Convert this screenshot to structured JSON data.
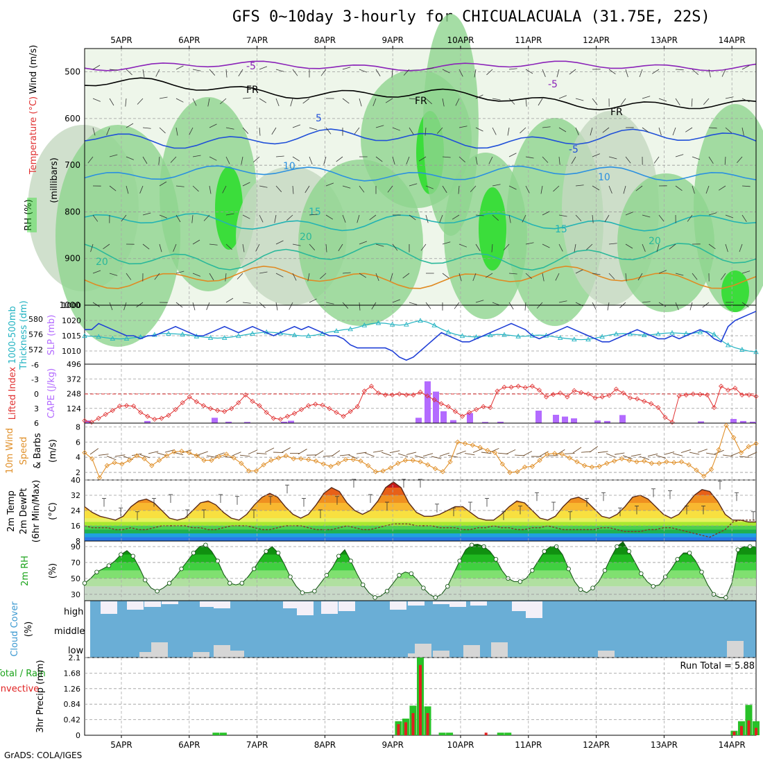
{
  "title": "GFS 0~10day 3-hourly for CHICUALACUALA (31.75E, 22S)",
  "footer": "GrADS: COLA/IGES",
  "run_total_label": "Run Total = 5.88",
  "date_labels": [
    "5APR",
    "6APR",
    "7APR",
    "8APR",
    "9APR",
    "10APR",
    "11APR",
    "12APR",
    "13APR",
    "14APR"
  ],
  "colors": {
    "slp": "#1f3fd6",
    "thickness": "#22b3c2",
    "lifted_index": "#e03030",
    "cape": "#b36bff",
    "wind_speed": "#e0902a",
    "rh_green": "#1fd11f",
    "cloud_blue": "#6aaed6",
    "rain_green": "#28c128",
    "convective_red": "#e02020"
  },
  "chart_data": [
    {
      "panel": "upper_air",
      "type": "heatmap",
      "ylabels": [
        "RH (%)",
        "Temperature (°C)",
        "Wind (m/s)",
        "(millibars)"
      ],
      "y_ticks": [
        500,
        600,
        700,
        800,
        900,
        1000
      ],
      "ylim": [
        1000,
        450
      ],
      "contour_labels": [
        "-5",
        "-5",
        "FR",
        "FR",
        "FR",
        "5",
        "-5",
        "10",
        "10",
        "15",
        "15",
        "20",
        "20",
        "20"
      ]
    },
    {
      "panel": "slp_thickness",
      "type": "line",
      "ylabels": [
        "1000-500mb",
        "Thickness (dm)",
        "SLP (mb)"
      ],
      "left_ticks": [
        "580",
        "576",
        "572"
      ],
      "right_ticks": [
        "1020",
        "1015",
        "1010"
      ],
      "series": [
        {
          "name": "SLP (mb)",
          "values": [
            1017,
            1017,
            1019,
            1018,
            1017,
            1016,
            1015,
            1015,
            1014,
            1015,
            1015,
            1016,
            1017,
            1018,
            1017,
            1016,
            1015,
            1015,
            1016,
            1017,
            1018,
            1017,
            1016,
            1017,
            1018,
            1017,
            1016,
            1015,
            1016,
            1017,
            1018,
            1017,
            1018,
            1017,
            1016,
            1015,
            1015,
            1014,
            1012,
            1011,
            1011,
            1011,
            1011,
            1011,
            1010,
            1008,
            1007,
            1008,
            1010,
            1012,
            1014,
            1016,
            1015,
            1014,
            1013,
            1013,
            1014,
            1015,
            1016,
            1017,
            1018,
            1019,
            1018,
            1017,
            1015,
            1014,
            1015,
            1016,
            1017,
            1018,
            1017,
            1016,
            1015,
            1014,
            1013,
            1013,
            1014,
            1015,
            1016,
            1017,
            1016,
            1015,
            1014,
            1014,
            1015,
            1014,
            1015,
            1016,
            1017,
            1016,
            1014,
            1013,
            1018,
            1020,
            1021,
            1022,
            1023
          ]
        },
        {
          "name": "1000-500mb Thickness (dm)",
          "values": [
            575.6,
            575.5,
            575.4,
            575.1,
            574.9,
            574.8,
            574.9,
            575.1,
            575.3,
            575.5,
            575.9,
            576.2,
            576.2,
            576.1,
            576.0,
            575.8,
            575.5,
            575.3,
            575.1,
            575.0,
            575.1,
            575.3,
            575.6,
            575.9,
            576.2,
            576.4,
            576.6,
            576.5,
            576.3,
            576.0,
            575.8,
            575.6,
            575.6,
            575.8,
            576.2,
            576.6,
            576.9,
            577.2,
            577.4,
            577.8,
            578.4,
            578.8,
            579.0,
            578.9,
            578.6,
            578.4,
            578.6,
            579.2,
            579.6,
            579.2,
            578.4,
            577.4,
            576.6,
            576.0,
            575.6,
            575.4,
            575.3,
            575.5,
            575.8,
            576.0,
            575.9,
            575.7,
            575.5,
            575.5,
            575.7,
            575.8,
            575.7,
            575.4,
            575.1,
            574.9,
            574.7,
            574.6,
            574.7,
            575.0,
            575.4,
            575.8,
            576.1,
            576.2,
            576.1,
            575.9,
            575.8,
            575.9,
            576.1,
            576.3,
            576.4,
            576.3,
            576.2,
            576.3,
            576.6,
            576.8,
            576.0,
            574.4,
            573.2,
            572.5,
            572.0,
            571.6,
            571.4
          ]
        }
      ]
    },
    {
      "panel": "lifted_index_cape",
      "type": "bar",
      "ylabels": [
        "Lifted Index",
        "CAPE (J/kg)"
      ],
      "left_ticks": [
        "-6",
        "-3",
        "0",
        "3",
        "6"
      ],
      "right_ticks": [
        "496",
        "372",
        "248",
        "124"
      ],
      "ylim_li": [
        6,
        -6
      ],
      "ylim_cape": [
        0,
        496
      ],
      "series": [
        {
          "name": "Lifted Index",
          "values": [
            5.5,
            5.8,
            5.0,
            4.2,
            3.4,
            2.5,
            2.4,
            2.5,
            3.8,
            4.6,
            5.2,
            5.0,
            4.4,
            3.2,
            1.8,
            0.6,
            1.6,
            2.4,
            3.0,
            3.4,
            3.6,
            3.0,
            1.8,
            0.2,
            1.5,
            2.4,
            3.8,
            5.0,
            5.2,
            4.6,
            4.0,
            3.2,
            2.4,
            2.1,
            2.3,
            3.0,
            3.8,
            4.6,
            3.6,
            2.6,
            -0.6,
            -1.6,
            -0.2,
            0.2,
            0.2,
            0.0,
            0.2,
            0.2,
            -0.4,
            0.4,
            1.2,
            2.0,
            2.6,
            3.6,
            4.6,
            3.8,
            3.2,
            2.6,
            2.8,
            -0.6,
            -1.4,
            -1.4,
            -1.6,
            -1.3,
            -1.6,
            -0.8,
            0.6,
            0.1,
            -0.2,
            0.6,
            -0.7,
            -0.3,
            0.0,
            0.8,
            0.6,
            0.3,
            -1.0,
            -0.2,
            0.8,
            1.0,
            1.5,
            2.0,
            2.8,
            4.8,
            5.8,
            0.4,
            0.2,
            0.0,
            0.1,
            0.2,
            2.8,
            -1.6,
            -0.8,
            -1.2,
            0.2,
            0.2,
            0.5
          ]
        },
        {
          "name": "CAPE (J/kg)",
          "values": [
            30,
            0,
            0,
            0,
            0,
            0,
            0,
            0,
            0,
            0,
            0,
            0,
            0,
            0,
            0,
            0,
            0,
            0,
            0,
            0,
            0,
            0,
            0,
            0,
            0,
            0,
            0,
            0,
            0,
            0,
            0,
            0,
            0,
            0,
            0,
            0,
            0,
            0,
            0,
            0,
            0,
            0,
            0,
            0,
            0,
            0,
            0,
            0,
            0,
            0,
            0,
            0,
            0,
            0,
            0,
            0,
            0,
            0,
            0,
            0,
            0,
            0,
            0,
            0,
            0,
            0,
            0,
            0,
            0,
            0,
            0,
            0,
            0,
            0,
            0,
            0,
            0,
            0,
            0,
            0,
            0,
            0,
            0,
            0,
            0,
            0,
            0,
            0,
            0,
            0,
            0,
            0,
            0,
            0,
            0,
            0,
            0
          ]
        }
      ]
    },
    {
      "panel": "wind10m",
      "type": "line",
      "ylabels": [
        "10m Wind",
        "Speed",
        "(m/s)",
        "& Barbs"
      ],
      "y_ticks": [
        2,
        4,
        6,
        8
      ],
      "ylim": [
        1,
        8.5
      ],
      "series": [
        {
          "name": "Speed",
          "values": [
            4.6,
            3.8,
            1.3,
            2.9,
            3.3,
            3.1,
            3.6,
            4.2,
            3.8,
            2.9,
            3.6,
            4.2,
            4.7,
            4.8,
            4.6,
            4.2,
            3.6,
            3.6,
            4.1,
            4.4,
            3.9,
            3.2,
            2.2,
            2.2,
            3.0,
            3.6,
            3.9,
            4.2,
            3.8,
            3.8,
            3.7,
            3.5,
            3.1,
            2.8,
            3.2,
            3.7,
            3.7,
            3.5,
            2.9,
            2.1,
            2.2,
            2.6,
            3.2,
            3.6,
            3.6,
            3.4,
            3.0,
            2.5,
            2.1,
            3.4,
            6.0,
            5.8,
            5.6,
            5.3,
            4.9,
            4.6,
            3.1,
            2.0,
            2.1,
            2.7,
            2.8,
            3.6,
            4.4,
            4.5,
            4.4,
            3.9,
            3.4,
            2.9,
            2.7,
            2.8,
            3.2,
            3.5,
            3.8,
            3.6,
            3.4,
            3.5,
            3.2,
            3.2,
            3.4,
            3.3,
            3.4,
            3.0,
            2.3,
            1.5,
            2.4,
            5.0,
            8.2,
            6.6,
            4.6,
            5.4,
            5.8
          ]
        }
      ]
    },
    {
      "panel": "temperature2m",
      "type": "area",
      "ylabels": [
        "2m Temp",
        "2m DewPt",
        "(6hr Min/Max)",
        "(°C)"
      ],
      "y_ticks": [
        8,
        16,
        24,
        32,
        40
      ],
      "ylim": [
        8,
        40
      ],
      "series": [
        {
          "name": "2m Temp",
          "values": [
            26,
            23,
            21,
            20,
            19,
            21,
            26,
            29,
            30,
            28,
            24,
            20,
            19,
            20,
            24,
            28,
            29,
            27,
            23,
            20,
            19,
            22,
            27,
            31,
            33,
            31,
            26,
            22,
            20,
            22,
            27,
            33,
            36,
            34,
            28,
            24,
            22,
            24,
            29,
            36,
            39,
            36,
            28,
            23,
            21,
            21,
            22,
            24,
            26,
            26,
            23,
            20,
            19,
            19,
            22,
            26,
            29,
            28,
            24,
            20,
            19,
            21,
            26,
            30,
            31,
            29,
            25,
            21,
            20,
            22,
            26,
            31,
            32,
            30,
            26,
            22,
            20,
            22,
            27,
            32,
            35,
            34,
            29,
            22,
            19,
            19,
            18,
            18
          ]
        },
        {
          "name": "2m DewPt",
          "values": [
            16,
            15,
            15,
            15,
            14,
            14,
            15,
            14,
            14,
            15,
            16,
            16,
            16,
            16,
            15,
            15,
            14,
            14,
            15,
            16,
            16,
            16,
            15,
            14,
            14,
            15,
            16,
            16,
            16,
            15,
            14,
            14,
            14,
            15,
            16,
            15,
            14,
            14,
            15,
            16,
            17,
            17,
            17,
            16,
            16,
            16,
            15,
            15,
            15,
            14,
            14,
            15,
            15,
            16,
            15,
            15,
            14,
            14,
            15,
            15,
            16,
            15,
            14,
            14,
            14,
            14,
            14,
            15,
            15,
            14,
            13,
            13,
            13,
            14,
            14,
            15,
            15,
            14,
            13,
            12,
            11,
            10,
            12,
            14,
            18,
            19,
            19,
            19
          ]
        }
      ]
    },
    {
      "panel": "rh2m",
      "type": "area",
      "ylabels": [
        "2m RH",
        "(%)"
      ],
      "y_ticks": [
        30,
        50,
        70,
        90
      ],
      "ylim": [
        22,
        97
      ],
      "series": [
        {
          "name": "2m RH",
          "values": [
            44,
            50,
            58,
            62,
            66,
            72,
            80,
            85,
            78,
            64,
            48,
            38,
            34,
            38,
            44,
            52,
            62,
            72,
            82,
            90,
            92,
            84,
            72,
            55,
            44,
            42,
            44,
            52,
            62,
            74,
            84,
            90,
            82,
            68,
            52,
            40,
            32,
            32,
            34,
            44,
            54,
            64,
            78,
            86,
            72,
            56,
            42,
            32,
            26,
            28,
            34,
            44,
            54,
            58,
            56,
            48,
            38,
            30,
            26,
            30,
            40,
            56,
            72,
            86,
            92,
            93,
            90,
            84,
            74,
            60,
            50,
            46,
            46,
            50,
            60,
            72,
            84,
            90,
            90,
            80,
            62,
            46,
            36,
            32,
            38,
            46,
            60,
            76,
            90,
            96,
            84,
            70,
            56,
            46,
            40,
            42,
            52,
            62,
            74,
            82,
            82,
            72,
            58,
            42,
            30,
            26,
            26,
            44,
            86,
            90,
            90,
            90
          ]
        }
      ]
    },
    {
      "panel": "cloud_cover",
      "type": "bar",
      "ylabels": [
        "Cloud Cover",
        "(%)"
      ],
      "row_labels": [
        "high",
        "middle",
        "low"
      ]
    },
    {
      "panel": "precip",
      "type": "bar",
      "ylabels": [
        "Total / Rain",
        "Convective",
        "3hr Precip (mm)"
      ],
      "y_ticks": [
        "0",
        "0.42",
        "0.84",
        "1.26",
        "1.68",
        "2.1"
      ],
      "ylim": [
        0,
        2.1
      ],
      "series": [
        {
          "name": "Total / Rain",
          "values": [
            0,
            0,
            0,
            0,
            0,
            0,
            0,
            0,
            0,
            0,
            0,
            0,
            0,
            0,
            0,
            0,
            0,
            0,
            0.07,
            0.07,
            0,
            0,
            0,
            0,
            0,
            0,
            0,
            0,
            0,
            0,
            0,
            0,
            0,
            0,
            0,
            0,
            0,
            0,
            0,
            0,
            0,
            0,
            0,
            0.38,
            0.45,
            0.8,
            2.1,
            0.78,
            0,
            0.07,
            0.07,
            0,
            0,
            0,
            0,
            0,
            0,
            0.07,
            0.07,
            0,
            0,
            0,
            0,
            0,
            0,
            0,
            0,
            0,
            0,
            0,
            0,
            0,
            0,
            0,
            0,
            0,
            0,
            0,
            0,
            0,
            0,
            0,
            0,
            0,
            0,
            0,
            0,
            0,
            0,
            0.12,
            0.38,
            0.82,
            0.38
          ]
        },
        {
          "name": "Convective",
          "values": [
            0,
            0,
            0,
            0,
            0,
            0,
            0,
            0,
            0,
            0,
            0,
            0,
            0,
            0,
            0,
            0,
            0,
            0,
            0,
            0,
            0,
            0,
            0,
            0,
            0,
            0,
            0,
            0,
            0,
            0,
            0,
            0,
            0,
            0,
            0,
            0,
            0,
            0,
            0,
            0,
            0,
            0,
            0,
            0.3,
            0.35,
            0.6,
            1.9,
            0.6,
            0,
            0,
            0,
            0,
            0,
            0,
            0,
            0.07,
            0,
            0,
            0,
            0,
            0,
            0,
            0,
            0,
            0,
            0,
            0,
            0,
            0,
            0,
            0,
            0,
            0,
            0,
            0,
            0,
            0,
            0,
            0,
            0,
            0,
            0,
            0,
            0,
            0,
            0,
            0,
            0,
            0,
            0.1,
            0.25,
            0.4,
            0.2
          ]
        }
      ]
    }
  ]
}
